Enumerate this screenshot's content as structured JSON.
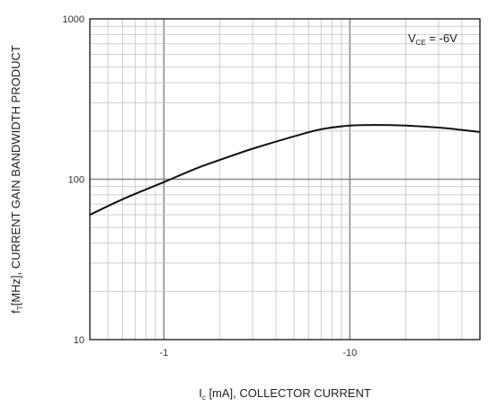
{
  "chart_data": {
    "type": "line",
    "xlabel": "I",
    "xlabel_sub": "c",
    "xlabel_rest": " [mA], COLLECTOR CURRENT",
    "ylabel": "f",
    "ylabel_sub": "T",
    "ylabel_rest": "[MHz], CURRENT GAIN BANDWIDTH PRODUCT",
    "annotation": {
      "main": "V",
      "sub": "CE",
      "rest": " = -6V",
      "position": "top-right"
    },
    "x_scale": "log",
    "y_scale": "log",
    "x_reversed_sign": true,
    "xlim": [
      -0.4,
      -50
    ],
    "ylim": [
      10,
      1000
    ],
    "x_ticks": [
      -1,
      -10
    ],
    "x_tick_labels": [
      "-1",
      "-10"
    ],
    "y_ticks": [
      10,
      100,
      1000
    ],
    "y_tick_labels": [
      "10",
      "100",
      "1000"
    ],
    "grid": true,
    "series": [
      {
        "x": [
          -0.4,
          -0.6,
          -1,
          -1.5,
          -2,
          -3,
          -5,
          -7,
          -10,
          -14,
          -20,
          -30,
          -40,
          -50
        ],
        "y": [
          60,
          75,
          96,
          117,
          132,
          155,
          185,
          205,
          216,
          218,
          216,
          210,
          203,
          197
        ]
      }
    ]
  }
}
